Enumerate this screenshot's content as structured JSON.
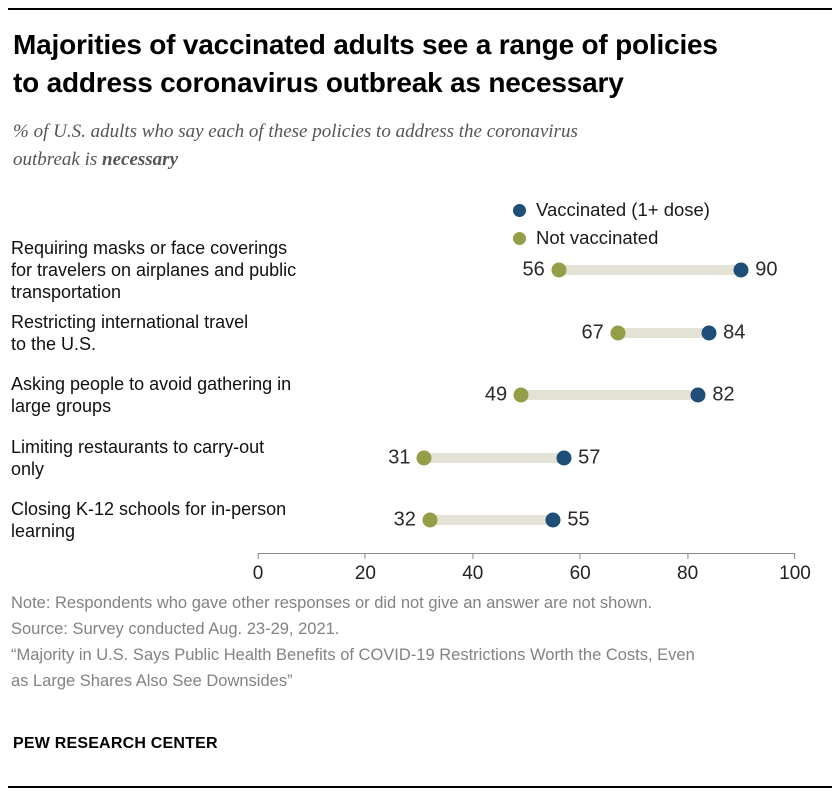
{
  "header": {
    "title": "Majorities of vaccinated adults see a range of policies\nto address coronavirus outbreak as necessary",
    "subtitle_regular": "% of U.S. adults who say each of these policies to address the coronavirus\noutbreak is ",
    "subtitle_bold": "necessary"
  },
  "chart_data": {
    "type": "dumbbell",
    "xlim": [
      0,
      100
    ],
    "x_ticks": [
      0,
      20,
      40,
      60,
      80,
      100
    ],
    "grid": false,
    "legend_position": "top-right",
    "connector_color": "#e4e1d5",
    "series": [
      {
        "name": "Vaccinated (1+ dose)",
        "color": "#1f4e79"
      },
      {
        "name": "Not vaccinated",
        "color": "#949d48"
      }
    ],
    "rows": [
      {
        "label": "Requiring masks or face coverings\nfor travelers on airplanes and public\ntransportation",
        "vaccinated": 90,
        "not_vaccinated": 56
      },
      {
        "label": "Restricting international travel\nto the U.S.",
        "vaccinated": 84,
        "not_vaccinated": 67
      },
      {
        "label": "Asking people to avoid gathering in\nlarge groups",
        "vaccinated": 82,
        "not_vaccinated": 49
      },
      {
        "label": "Limiting restaurants to carry-out\nonly",
        "vaccinated": 57,
        "not_vaccinated": 31
      },
      {
        "label": "Closing K-12 schools for in-person\nlearning",
        "vaccinated": 55,
        "not_vaccinated": 32
      }
    ]
  },
  "footer": {
    "note": "Note: Respondents who gave other responses or did not give an answer are not shown.",
    "source": "Source: Survey conducted Aug. 23-29, 2021.",
    "report": "“Majority in U.S. Says Public Health Benefits of COVID-19 Restrictions Worth the Costs, Even\nas Large Shares Also See Downsides”",
    "brand": "PEW RESEARCH CENTER"
  }
}
